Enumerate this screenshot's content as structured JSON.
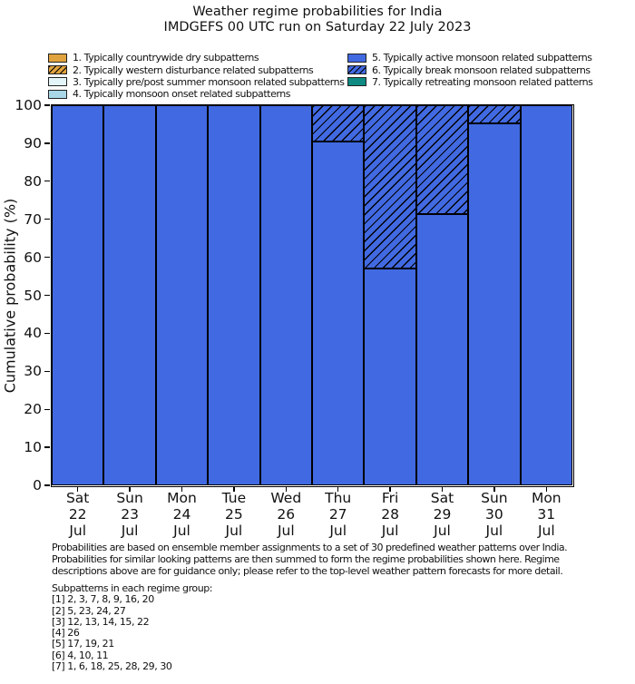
{
  "title": {
    "line1": "Weather regime probabilities for India",
    "line2": "IMDGEFS 00 UTC run on Saturday 22 July 2023"
  },
  "legend": {
    "items": [
      {
        "label": "1. Typically countrywide dry subpatterns",
        "color": "#e1a33e",
        "hatch": false
      },
      {
        "label": "2. Typically western disturbance related subpatterns",
        "color": "#e1a33e",
        "hatch": true
      },
      {
        "label": "3. Typically pre/post summer monsoon related subpatterns",
        "color": "#e4f5f9",
        "hatch": false
      },
      {
        "label": "4. Typically monsoon onset related subpatterns",
        "color": "#a9d7e8",
        "hatch": false
      },
      {
        "label": "5. Typically active monsoon related subpatterns",
        "color": "#4169e1",
        "hatch": false
      },
      {
        "label": "6. Typically break monsoon related subpatterns",
        "color": "#4169e1",
        "hatch": true
      },
      {
        "label": "7. Typically retreating monsoon related patterns",
        "color": "#0e8a82",
        "hatch": false
      }
    ]
  },
  "chart_data": {
    "type": "bar",
    "stacked": true,
    "title": "Weather regime probabilities for India — IMDGEFS 00 UTC run on Saturday 22 July 2023",
    "xlabel": "",
    "ylabel": "Cumulative probability (%)",
    "ylim": [
      0,
      100
    ],
    "yticks": [
      0,
      10,
      20,
      30,
      40,
      50,
      60,
      70,
      80,
      90,
      100
    ],
    "grid": false,
    "legend_position": "top",
    "categories": [
      {
        "day": "Sat",
        "date": "22",
        "month": "Jul"
      },
      {
        "day": "Sun",
        "date": "23",
        "month": "Jul"
      },
      {
        "day": "Mon",
        "date": "24",
        "month": "Jul"
      },
      {
        "day": "Tue",
        "date": "25",
        "month": "Jul"
      },
      {
        "day": "Wed",
        "date": "26",
        "month": "Jul"
      },
      {
        "day": "Thu",
        "date": "27",
        "month": "Jul"
      },
      {
        "day": "Fri",
        "date": "28",
        "month": "Jul"
      },
      {
        "day": "Sat",
        "date": "29",
        "month": "Jul"
      },
      {
        "day": "Sun",
        "date": "30",
        "month": "Jul"
      },
      {
        "day": "Mon",
        "date": "31",
        "month": "Jul"
      }
    ],
    "series": [
      {
        "name": "5. Typically active monsoon related subpatterns",
        "color": "#4169e1",
        "hatch": false,
        "values": [
          100,
          100,
          100,
          100,
          100,
          90.5,
          57.1,
          71.4,
          95.2,
          100
        ]
      },
      {
        "name": "6. Typically break monsoon related subpatterns",
        "color": "#4169e1",
        "hatch": true,
        "values": [
          0,
          0,
          0,
          0,
          0,
          9.5,
          42.9,
          28.6,
          4.8,
          0
        ]
      }
    ],
    "bar_outline_color": "#000000"
  },
  "footer": {
    "note_lines": [
      "Probabilities are based on ensemble member assignments to a set of 30 predefined weather patterns over India.",
      "Probabilities for similar looking patterns are then summed to form the regime probabilities shown here. Regime",
      "descriptions above are for guidance only; please refer to the top-level weather pattern forecasts for more detail."
    ],
    "subpatterns_title": "Subpatterns in each regime group:",
    "subpatterns": [
      "[1] 2, 3, 7, 8, 9, 16, 20",
      "[2] 5, 23, 24, 27",
      "[3] 12, 13, 14, 15, 22",
      "[4] 26",
      "[5] 17, 19, 21",
      "[6] 4, 10, 11",
      "[7] 1, 6, 18, 25, 28, 29, 30"
    ]
  }
}
